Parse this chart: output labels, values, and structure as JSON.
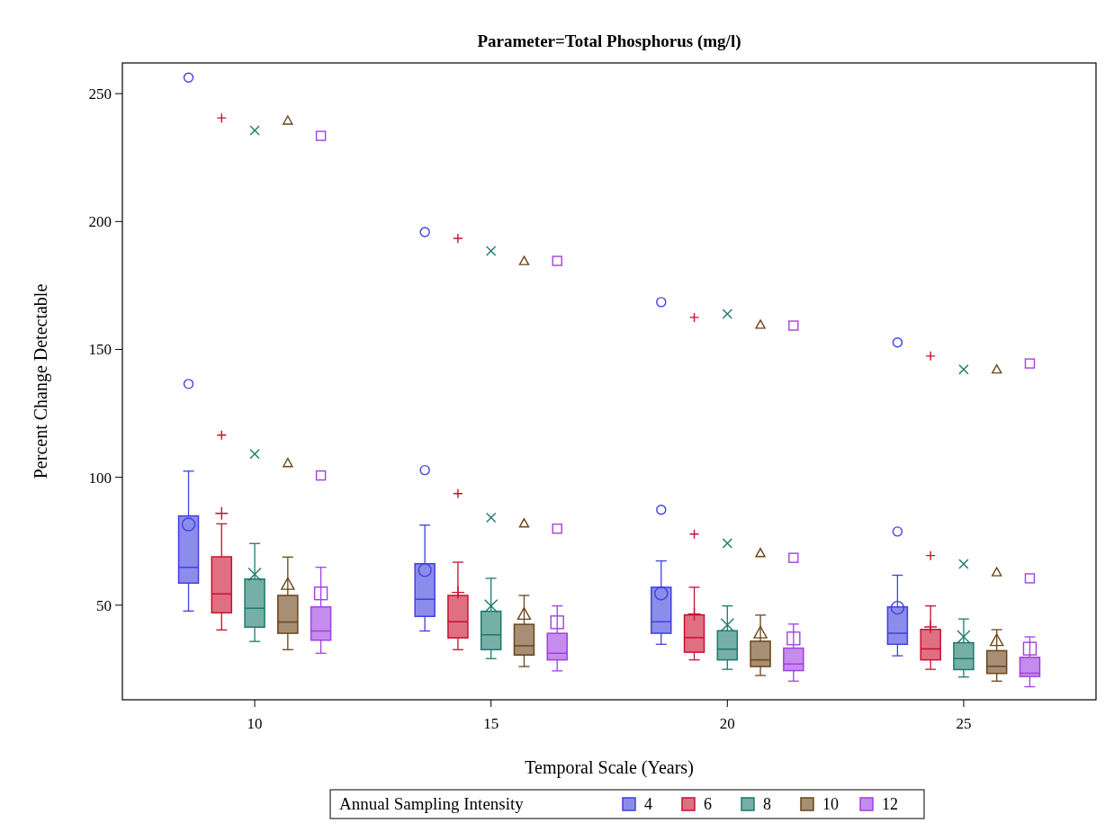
{
  "chart_data": {
    "type": "box",
    "title": "Parameter=Total Phosphorus (mg/l)",
    "xlabel": "Temporal Scale (Years)",
    "ylabel": "Percent Change Detectable",
    "legend_title": "Annual Sampling Intensity",
    "legend": "bottom",
    "grid": false,
    "xlim": [
      7.2,
      27.8
    ],
    "xticks": [
      10,
      15,
      20,
      25
    ],
    "ylim": [
      13,
      262
    ],
    "yticks": [
      50,
      100,
      150,
      200,
      250
    ],
    "series": [
      {
        "name": "4",
        "color": "#4040e0",
        "marker": "circle",
        "x": [
          8.6,
          13.6,
          18.6,
          23.6
        ],
        "boxes": [
          {
            "low": 47.7,
            "q1": 58.6,
            "median": 64.8,
            "q3": 84.9,
            "high": 102.4,
            "mean": 81.6,
            "outliers": [
              136.5,
              256.3
            ]
          },
          {
            "low": 39.9,
            "q1": 45.6,
            "median": 52.3,
            "q3": 66.2,
            "high": 81.3,
            "mean": 63.7,
            "outliers": [
              102.8,
              195.9
            ]
          },
          {
            "low": 34.7,
            "q1": 39,
            "median": 43.5,
            "q3": 57,
            "high": 67.3,
            "mean": 54.6,
            "outliers": [
              87.3,
              168.5
            ]
          },
          {
            "low": 30.2,
            "q1": 34.7,
            "median": 39,
            "q3": 49.3,
            "high": 61.7,
            "mean": 49,
            "outliers": [
              78.8,
              152.7
            ]
          }
        ]
      },
      {
        "name": "6",
        "color": "#c8102e",
        "marker": "plus",
        "x": [
          9.3,
          14.3,
          19.3,
          24.3
        ],
        "boxes": [
          {
            "low": 40.3,
            "q1": 47,
            "median": 54.4,
            "q3": 68.9,
            "high": 81.8,
            "mean": 85.9,
            "outliers": [
              116.5,
              240.5
            ]
          },
          {
            "low": 32.6,
            "q1": 37.2,
            "median": 43.5,
            "q3": 53.8,
            "high": 66.8,
            "mean": 55,
            "outliers": [
              93.6,
              193.4
            ]
          },
          {
            "low": 28.6,
            "q1": 31.6,
            "median": 37.3,
            "q3": 46.2,
            "high": 57,
            "mean": 46.5,
            "outliers": [
              77.8,
              162.5
            ]
          },
          {
            "low": 24.9,
            "q1": 28.6,
            "median": 32.9,
            "q3": 40.5,
            "high": 49.7,
            "mean": 41.5,
            "outliers": [
              69.4,
              147.4
            ]
          }
        ]
      },
      {
        "name": "8",
        "color": "#1a7a6c",
        "marker": "cross",
        "x": [
          10,
          15,
          20,
          25
        ],
        "boxes": [
          {
            "low": 35.8,
            "q1": 41.4,
            "median": 48.8,
            "q3": 60.2,
            "high": 74.1,
            "mean": 62.1,
            "outliers": [
              109.1,
              235.6
            ]
          },
          {
            "low": 29.1,
            "q1": 32.6,
            "median": 38.4,
            "q3": 47.6,
            "high": 60.5,
            "mean": 49.7,
            "outliers": [
              84.2,
              188.5
            ]
          },
          {
            "low": 24.9,
            "q1": 28.6,
            "median": 32.8,
            "q3": 40,
            "high": 49.7,
            "mean": 42.3,
            "outliers": [
              74.2,
              163.9
            ]
          },
          {
            "low": 21.9,
            "q1": 24.8,
            "median": 29.1,
            "q3": 35.3,
            "high": 44.6,
            "mean": 37.6,
            "outliers": [
              66.1,
              142.2
            ]
          }
        ]
      },
      {
        "name": "10",
        "color": "#6b4418",
        "marker": "triangle",
        "x": [
          10.7,
          15.7,
          20.7,
          25.7
        ],
        "boxes": [
          {
            "low": 32.6,
            "q1": 39,
            "median": 43.4,
            "q3": 53.8,
            "high": 68.8,
            "mean": 58.2,
            "outliers": [
              105.6,
              239.5
            ]
          },
          {
            "low": 26,
            "q1": 30.5,
            "median": 34.1,
            "q3": 42.5,
            "high": 53.8,
            "mean": 46.5,
            "outliers": [
              82,
              184.6
            ]
          },
          {
            "low": 22.5,
            "q1": 26,
            "median": 28.6,
            "q3": 35.9,
            "high": 46.1,
            "mean": 39.2,
            "outliers": [
              70.4,
              159.7
            ]
          },
          {
            "low": 20.3,
            "q1": 23.3,
            "median": 26.1,
            "q3": 32.2,
            "high": 40.4,
            "mean": 36.2,
            "outliers": [
              62.9,
              142.2
            ]
          }
        ]
      },
      {
        "name": "12",
        "color": "#a040e0",
        "marker": "square",
        "x": [
          11.4,
          16.4,
          21.4,
          26.4
        ],
        "boxes": [
          {
            "low": 31.2,
            "q1": 36.3,
            "median": 39.9,
            "q3": 49.3,
            "high": 64.8,
            "mean": 54.6,
            "outliers": [
              100.7,
              233.5
            ]
          },
          {
            "low": 24.3,
            "q1": 28.6,
            "median": 31.2,
            "q3": 39,
            "high": 49.7,
            "mean": 43.3,
            "outliers": [
              79.9,
              184.6
            ]
          },
          {
            "low": 20.3,
            "q1": 24.4,
            "median": 27,
            "q3": 33.2,
            "high": 42.6,
            "mean": 37,
            "outliers": [
              68.5,
              159.3
            ]
          },
          {
            "low": 18.1,
            "q1": 22.1,
            "median": 23.4,
            "q3": 29.6,
            "high": 37.6,
            "mean": 33,
            "outliers": [
              60.5,
              144.5
            ]
          }
        ]
      }
    ]
  }
}
